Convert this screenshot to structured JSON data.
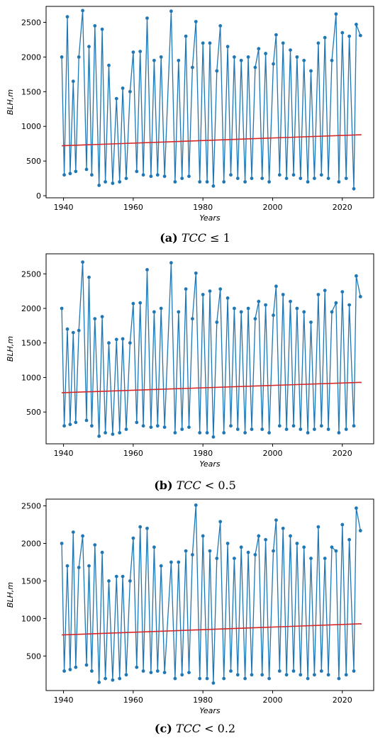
{
  "chart_data": [
    {
      "type": "line",
      "caption": {
        "letter": "(a)",
        "variable": "TCC",
        "condition": "≤ 1"
      },
      "xlabel": "Years",
      "ylabel": "BLH,m",
      "xlim": [
        1935,
        2029
      ],
      "ylim": [
        -30,
        2730
      ],
      "xticks": [
        1940,
        1960,
        1980,
        2000,
        2020
      ],
      "yticks": [
        0,
        500,
        1000,
        1500,
        2000,
        2500
      ],
      "series": [
        {
          "style": "line-with-markers",
          "color": "#1f77b4",
          "x": [
            1939.5,
            1940.2,
            1941.1,
            1941.9,
            1942.8,
            1943.5,
            1944.4,
            1945.5,
            1946.6,
            1947.3,
            1948.1,
            1949.0,
            1950.2,
            1951.1,
            1952.0,
            1953.0,
            1954.1,
            1955.2,
            1956.1,
            1957.0,
            1958.0,
            1959.1,
            1960.0,
            1961.0,
            1962.0,
            1962.9,
            1964.0,
            1965.1,
            1966.0,
            1967.0,
            1968.0,
            1969.0,
            1970.9,
            1972.0,
            1973.0,
            1974.0,
            1975.1,
            1976.0,
            1977.0,
            1978.0,
            1979.1,
            1980.0,
            1981.2,
            1982.0,
            1983.0,
            1984.0,
            1985.0,
            1986.0,
            1987.1,
            1988.0,
            1989.0,
            1990.0,
            1991.0,
            1992.1,
            1993.0,
            1994.0,
            1995.0,
            1996.0,
            1997.0,
            1998.0,
            1999.0,
            2000.2,
            2001.0,
            2002.0,
            2003.0,
            2004.0,
            2005.1,
            2006.0,
            2007.0,
            2008.0,
            2009.0,
            2010.1,
            2011.0,
            2012.0,
            2013.1,
            2014.0,
            2015.0,
            2016.0,
            2017.0,
            2018.2,
            2019.0,
            2020.0,
            2021.1,
            2022.0,
            2023.3,
            2024.0,
            2025.2
          ],
          "y": [
            2000,
            300,
            2580,
            320,
            1650,
            350,
            2000,
            2670,
            380,
            2150,
            300,
            2450,
            150,
            2400,
            200,
            1880,
            180,
            1400,
            200,
            1550,
            250,
            1500,
            2070,
            350,
            2080,
            300,
            2560,
            280,
            1950,
            300,
            2000,
            280,
            2660,
            200,
            1950,
            250,
            2300,
            280,
            1850,
            2510,
            200,
            2200,
            200,
            2200,
            140,
            1800,
            2450,
            200,
            2150,
            300,
            2000,
            250,
            1950,
            200,
            2000,
            250,
            1850,
            2120,
            250,
            2050,
            200,
            1900,
            2320,
            300,
            2200,
            250,
            2100,
            300,
            2000,
            250,
            1950,
            200,
            1800,
            250,
            2200,
            300,
            2280,
            250,
            1950,
            2620,
            200,
            2350,
            250,
            2300,
            100,
            2470,
            2310
          ]
        },
        {
          "style": "trend",
          "color": "#d62728",
          "x": [
            1939.5,
            2025.5
          ],
          "y": [
            720,
            880
          ]
        }
      ]
    },
    {
      "type": "line",
      "caption": {
        "letter": "(b)",
        "variable": "TCC",
        "condition": "< 0.5"
      },
      "xlabel": "Years",
      "ylabel": "BLH,m",
      "xlim": [
        1935,
        2029
      ],
      "ylim": [
        40,
        2790
      ],
      "xticks": [
        1940,
        1960,
        1980,
        2000,
        2020
      ],
      "yticks": [
        500,
        1000,
        1500,
        2000,
        2500
      ],
      "series": [
        {
          "style": "line-with-markers",
          "color": "#1f77b4",
          "x": [
            1939.5,
            1940.2,
            1941.1,
            1941.9,
            1942.8,
            1943.5,
            1944.4,
            1945.5,
            1946.6,
            1947.3,
            1948.1,
            1949.0,
            1950.2,
            1951.1,
            1952.0,
            1953.0,
            1954.1,
            1955.2,
            1956.1,
            1957.0,
            1958.0,
            1959.1,
            1960.0,
            1961.0,
            1962.0,
            1962.9,
            1964.0,
            1965.1,
            1966.0,
            1967.0,
            1968.0,
            1969.0,
            1970.9,
            1972.0,
            1973.0,
            1974.0,
            1975.1,
            1976.0,
            1977.0,
            1978.0,
            1979.1,
            1980.0,
            1981.2,
            1982.0,
            1983.0,
            1984.0,
            1985.0,
            1986.0,
            1987.1,
            1988.0,
            1989.0,
            1990.0,
            1991.0,
            1992.1,
            1993.0,
            1994.0,
            1995.0,
            1996.0,
            1997.0,
            1998.0,
            1999.0,
            2000.2,
            2001.0,
            2002.0,
            2003.0,
            2004.0,
            2005.1,
            2006.0,
            2007.0,
            2008.0,
            2009.0,
            2010.1,
            2011.0,
            2012.0,
            2013.1,
            2014.0,
            2015.0,
            2016.0,
            2017.0,
            2018.2,
            2019.0,
            2020.0,
            2021.1,
            2022.0,
            2023.3,
            2024.0,
            2025.2
          ],
          "y": [
            2000,
            300,
            1700,
            320,
            1650,
            350,
            1680,
            2670,
            380,
            2450,
            300,
            1850,
            150,
            1880,
            200,
            1500,
            180,
            1550,
            200,
            1560,
            250,
            1500,
            2070,
            350,
            2080,
            300,
            2560,
            280,
            1950,
            300,
            2000,
            280,
            2660,
            200,
            1950,
            250,
            2280,
            280,
            1850,
            2510,
            200,
            2200,
            200,
            2250,
            140,
            1800,
            2280,
            200,
            2150,
            300,
            2000,
            250,
            1950,
            200,
            2000,
            250,
            1850,
            2100,
            250,
            2050,
            200,
            1900,
            2320,
            300,
            2200,
            250,
            2100,
            300,
            2000,
            250,
            1950,
            200,
            1800,
            250,
            2200,
            300,
            2260,
            250,
            1950,
            2080,
            200,
            2240,
            250,
            2050,
            300,
            2470,
            2170
          ]
        },
        {
          "style": "trend",
          "color": "#d62728",
          "x": [
            1939.5,
            2025.5
          ],
          "y": [
            780,
            930
          ]
        }
      ]
    },
    {
      "type": "line",
      "caption": {
        "letter": "(c)",
        "variable": "TCC",
        "condition": "< 0.2"
      },
      "xlabel": "Years",
      "ylabel": "BLH,m",
      "xlim": [
        1935,
        2029
      ],
      "ylim": [
        40,
        2590
      ],
      "xticks": [
        1940,
        1960,
        1980,
        2000,
        2020
      ],
      "yticks": [
        500,
        1000,
        1500,
        2000,
        2500
      ],
      "series": [
        {
          "style": "line-with-markers",
          "color": "#1f77b4",
          "x": [
            1939.5,
            1940.2,
            1941.1,
            1941.9,
            1942.8,
            1943.5,
            1944.4,
            1945.5,
            1946.6,
            1947.3,
            1948.1,
            1949.0,
            1950.2,
            1951.1,
            1952.0,
            1953.0,
            1954.1,
            1955.2,
            1956.1,
            1957.0,
            1958.0,
            1959.1,
            1960.0,
            1961.0,
            1962.0,
            1962.9,
            1964.0,
            1965.1,
            1966.0,
            1967.0,
            1968.0,
            1969.0,
            1970.9,
            1972.0,
            1973.0,
            1974.0,
            1975.1,
            1976.0,
            1977.0,
            1978.0,
            1979.1,
            1980.0,
            1981.2,
            1982.0,
            1983.0,
            1984.0,
            1985.0,
            1986.0,
            1987.1,
            1988.0,
            1989.0,
            1990.0,
            1991.0,
            1992.1,
            1993.0,
            1994.0,
            1995.0,
            1996.0,
            1997.0,
            1998.0,
            1999.0,
            2000.2,
            2001.0,
            2002.0,
            2003.0,
            2004.0,
            2005.1,
            2006.0,
            2007.0,
            2008.0,
            2009.0,
            2010.1,
            2011.0,
            2012.0,
            2013.1,
            2014.0,
            2015.0,
            2016.0,
            2017.0,
            2018.2,
            2019.0,
            2020.0,
            2021.1,
            2022.0,
            2023.3,
            2024.0,
            2025.2
          ],
          "y": [
            2000,
            300,
            1700,
            320,
            2150,
            350,
            1680,
            2100,
            380,
            1700,
            300,
            1980,
            150,
            1880,
            200,
            1500,
            180,
            1560,
            200,
            1560,
            250,
            1500,
            2070,
            350,
            2220,
            300,
            2200,
            280,
            1950,
            300,
            1700,
            280,
            1750,
            200,
            1750,
            250,
            1900,
            280,
            1850,
            2510,
            200,
            2100,
            200,
            1900,
            140,
            1800,
            2290,
            200,
            2000,
            300,
            1800,
            250,
            1950,
            200,
            1880,
            250,
            1850,
            2100,
            250,
            2050,
            200,
            1900,
            2310,
            300,
            2200,
            250,
            2100,
            300,
            2000,
            250,
            1950,
            200,
            1800,
            250,
            2220,
            300,
            1800,
            250,
            1950,
            1900,
            200,
            2250,
            250,
            2050,
            300,
            2470,
            2170
          ]
        },
        {
          "style": "trend",
          "color": "#d62728",
          "x": [
            1939.5,
            2025.5
          ],
          "y": [
            780,
            930
          ]
        }
      ]
    }
  ]
}
